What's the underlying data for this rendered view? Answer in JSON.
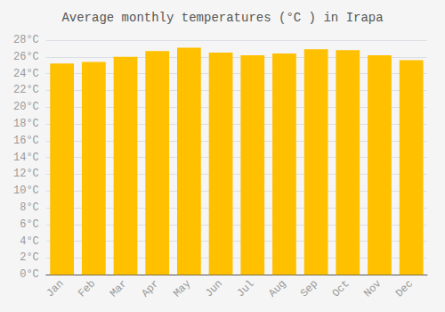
{
  "chart_data": {
    "type": "bar",
    "title": "Average monthly temperatures (°C ) in Irapa",
    "categories": [
      "Jan",
      "Feb",
      "Mar",
      "Apr",
      "May",
      "Jun",
      "Jul",
      "Aug",
      "Sep",
      "Oct",
      "Nov",
      "Dec"
    ],
    "values": [
      25.2,
      25.4,
      26.0,
      26.7,
      27.1,
      26.5,
      26.2,
      26.4,
      26.9,
      26.8,
      26.2,
      25.6
    ],
    "color": "#FFC000",
    "ylim": [
      0,
      28
    ],
    "yticks": [
      {
        "value": 0,
        "label": "0°C"
      },
      {
        "value": 2,
        "label": "2°C"
      },
      {
        "value": 4,
        "label": "4°C"
      },
      {
        "value": 6,
        "label": "6°C"
      },
      {
        "value": 8,
        "label": "8°C"
      },
      {
        "value": 10,
        "label": "10°C"
      },
      {
        "value": 12,
        "label": "12°C"
      },
      {
        "value": 14,
        "label": "14°C"
      },
      {
        "value": 16,
        "label": "16°C"
      },
      {
        "value": 18,
        "label": "18°C"
      },
      {
        "value": 20,
        "label": "20°C"
      },
      {
        "value": 22,
        "label": "22°C"
      },
      {
        "value": 24,
        "label": "24°C"
      },
      {
        "value": 26,
        "label": "26°C"
      },
      {
        "value": 28,
        "label": "28°C"
      }
    ],
    "grid": true
  }
}
